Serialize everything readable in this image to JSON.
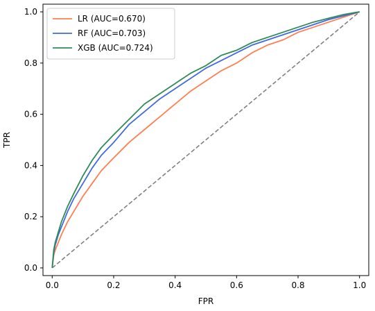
{
  "chart_data": {
    "type": "line",
    "title": "",
    "xlabel": "FPR",
    "ylabel": "TPR",
    "xlim": [
      -0.03,
      1.03
    ],
    "ylim": [
      -0.03,
      1.03
    ],
    "grid": false,
    "legend_position": "top-left",
    "x_ticks": [
      0.0,
      0.2,
      0.4,
      0.6,
      0.8,
      1.0
    ],
    "x_tick_labels": [
      "0.0",
      "0.2",
      "0.4",
      "0.6",
      "0.8",
      "1.0"
    ],
    "y_ticks": [
      0.0,
      0.2,
      0.4,
      0.6,
      0.8,
      1.0
    ],
    "y_tick_labels": [
      "0.0",
      "0.2",
      "0.4",
      "0.6",
      "0.8",
      "1.0"
    ],
    "series": [
      {
        "name": "LR (AUC=0.670)",
        "color": "#ff7f50",
        "x": [
          0.0,
          0.005,
          0.01,
          0.02,
          0.03,
          0.05,
          0.07,
          0.1,
          0.13,
          0.16,
          0.2,
          0.25,
          0.3,
          0.35,
          0.4,
          0.45,
          0.5,
          0.55,
          0.6,
          0.65,
          0.7,
          0.75,
          0.8,
          0.85,
          0.9,
          0.95,
          1.0
        ],
        "y": [
          0.0,
          0.05,
          0.07,
          0.1,
          0.13,
          0.18,
          0.22,
          0.28,
          0.33,
          0.38,
          0.43,
          0.49,
          0.54,
          0.59,
          0.64,
          0.69,
          0.73,
          0.77,
          0.8,
          0.84,
          0.87,
          0.89,
          0.92,
          0.94,
          0.96,
          0.98,
          1.0
        ]
      },
      {
        "name": "RF (AUC=0.703)",
        "color": "#4169e1",
        "x": [
          0.0,
          0.005,
          0.01,
          0.02,
          0.03,
          0.05,
          0.07,
          0.1,
          0.13,
          0.16,
          0.2,
          0.25,
          0.3,
          0.35,
          0.4,
          0.45,
          0.5,
          0.55,
          0.6,
          0.65,
          0.7,
          0.75,
          0.8,
          0.85,
          0.9,
          0.95,
          1.0
        ],
        "y": [
          0.0,
          0.06,
          0.09,
          0.13,
          0.16,
          0.22,
          0.27,
          0.33,
          0.39,
          0.44,
          0.49,
          0.56,
          0.61,
          0.66,
          0.7,
          0.74,
          0.78,
          0.81,
          0.84,
          0.87,
          0.89,
          0.91,
          0.93,
          0.95,
          0.97,
          0.985,
          1.0
        ]
      },
      {
        "name": "XGB (AUC=0.724)",
        "color": "#2e8b57",
        "x": [
          0.0,
          0.005,
          0.01,
          0.02,
          0.03,
          0.05,
          0.07,
          0.1,
          0.13,
          0.16,
          0.2,
          0.25,
          0.3,
          0.35,
          0.4,
          0.45,
          0.5,
          0.55,
          0.6,
          0.65,
          0.7,
          0.75,
          0.8,
          0.85,
          0.9,
          0.95,
          1.0
        ],
        "y": [
          0.0,
          0.07,
          0.1,
          0.14,
          0.18,
          0.24,
          0.29,
          0.36,
          0.42,
          0.47,
          0.52,
          0.58,
          0.64,
          0.68,
          0.72,
          0.76,
          0.79,
          0.83,
          0.85,
          0.88,
          0.9,
          0.92,
          0.94,
          0.96,
          0.975,
          0.99,
          1.0
        ]
      }
    ],
    "reference_line": {
      "x": [
        0.0,
        1.0
      ],
      "y": [
        0.0,
        1.0
      ],
      "color": "#808080",
      "style": "dashed"
    }
  }
}
